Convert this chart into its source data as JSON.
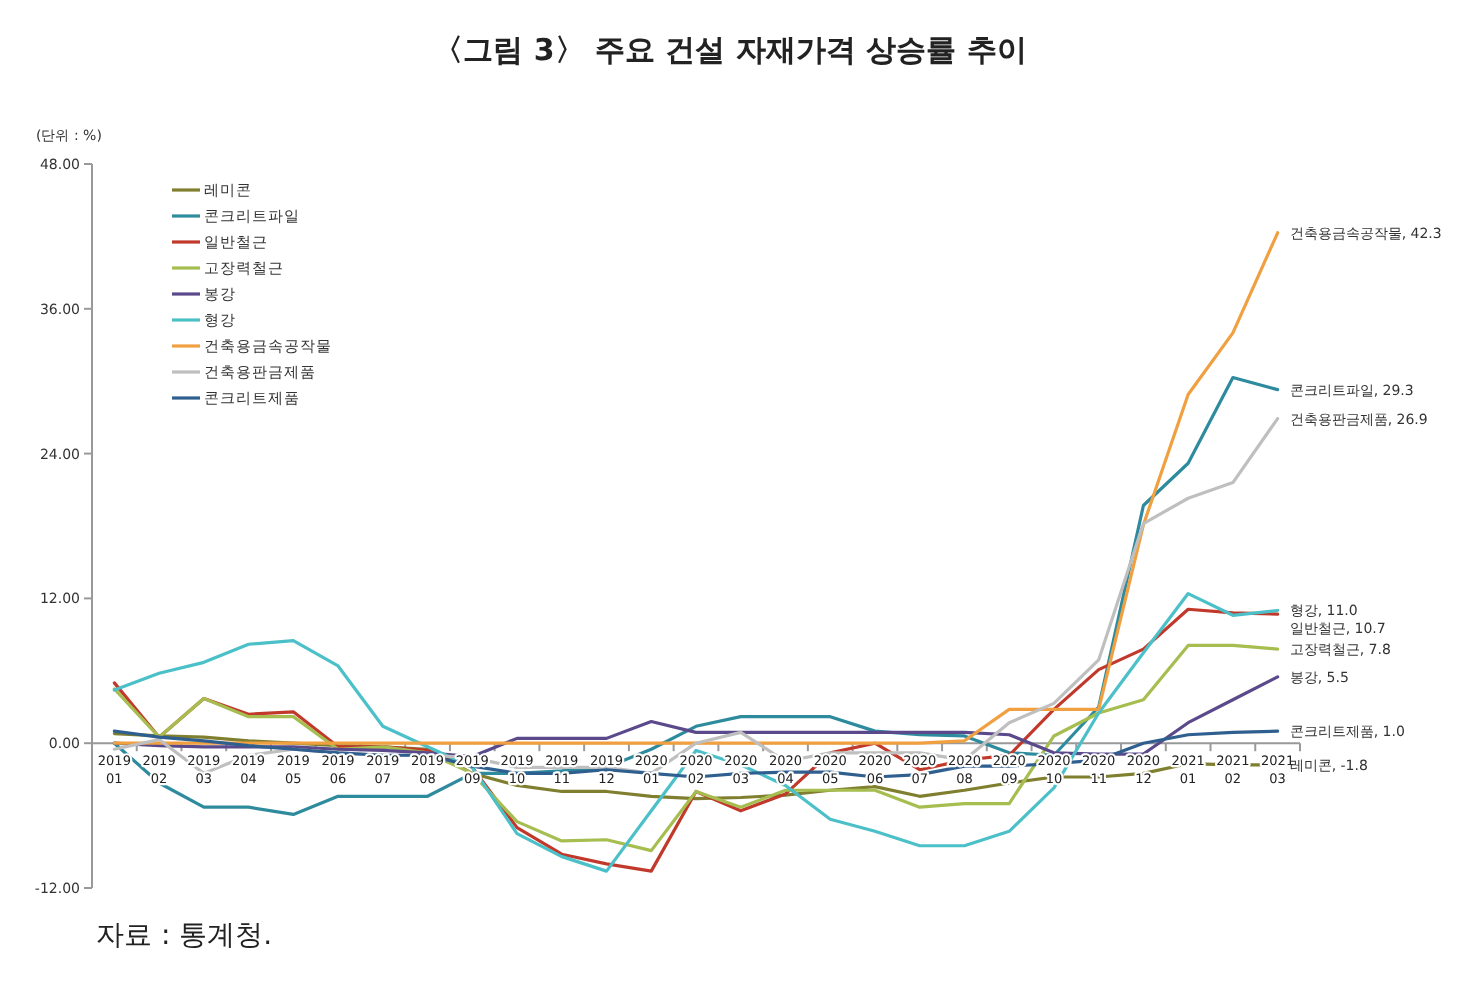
{
  "chart_data": {
    "type": "line",
    "title": "〈그림 3〉 주요 건설 자재가격 상승률 추이",
    "ylabel": "(단위 : %)",
    "categories": [
      "2019\n01",
      "2019\n02",
      "2019\n03",
      "2019\n04",
      "2019\n05",
      "2019\n06",
      "2019\n07",
      "2019\n08",
      "2019\n09",
      "2019\n10",
      "2019\n11",
      "2019\n12",
      "2020\n01",
      "2020\n02",
      "2020\n03",
      "2020\n04",
      "2020\n05",
      "2020\n06",
      "2020\n07",
      "2020\n08",
      "2020\n09",
      "2020\n10",
      "2020\n11",
      "2020\n12",
      "2021\n01",
      "2021\n02",
      "2021\n03"
    ],
    "ylim": [
      -12,
      48
    ],
    "yticks": [
      {
        "value": -12,
        "label": "-12.00"
      },
      {
        "value": 0,
        "label": "0.00"
      },
      {
        "value": 12,
        "label": "12.00"
      },
      {
        "value": 24,
        "label": "24.00"
      },
      {
        "value": 36,
        "label": "36.00"
      },
      {
        "value": 48,
        "label": "48.00"
      }
    ],
    "grid": false,
    "legend": "top left",
    "line_style": "solid",
    "marker": "none",
    "series": [
      {
        "name": "레미콘",
        "color": "#7f7f2f",
        "values": [
          0.8,
          0.6,
          0.5,
          0.2,
          0.0,
          -0.2,
          -0.3,
          -0.5,
          -2.5,
          -3.5,
          -4.0,
          -4.0,
          -4.4,
          -4.6,
          -4.5,
          -4.3,
          -3.9,
          -3.6,
          -4.4,
          -3.9,
          -3.3,
          -2.8,
          -2.8,
          -2.5,
          -1.7,
          -1.8,
          -1.8
        ]
      },
      {
        "name": "콘크리트파일",
        "color": "#2e8b9e",
        "values": [
          0.0,
          -3.3,
          -5.3,
          -5.3,
          -5.9,
          -4.4,
          -4.4,
          -4.4,
          -2.5,
          -2.5,
          -2.3,
          -2.0,
          -0.5,
          1.4,
          2.2,
          2.2,
          2.2,
          1.0,
          0.7,
          0.6,
          -0.8,
          -1.0,
          3.0,
          19.7,
          23.2,
          30.3,
          29.3
        ]
      },
      {
        "name": "일반철근",
        "color": "#c0392b",
        "values": [
          5.0,
          0.5,
          3.7,
          2.4,
          2.6,
          -0.3,
          -0.3,
          -0.6,
          -2.0,
          -7.0,
          -9.2,
          -10.0,
          -10.6,
          -4.0,
          -5.6,
          -4.2,
          -0.8,
          0.0,
          -2.2,
          -1.4,
          -1.0,
          2.8,
          6.1,
          7.8,
          11.1,
          10.8,
          10.7
        ]
      },
      {
        "name": "고장력철근",
        "color": "#a6bd4f",
        "values": [
          4.5,
          0.5,
          3.7,
          2.2,
          2.2,
          -0.5,
          -0.3,
          -0.8,
          -2.5,
          -6.5,
          -8.1,
          -8.0,
          -8.9,
          -4.0,
          -5.3,
          -3.9,
          -3.9,
          -3.9,
          -5.3,
          -5.0,
          -5.0,
          0.6,
          2.5,
          3.6,
          8.1,
          8.1,
          7.8
        ]
      },
      {
        "name": "봉강",
        "color": "#5b4a8b",
        "values": [
          0.0,
          -0.2,
          -0.3,
          -0.3,
          -0.3,
          -0.5,
          -0.6,
          -0.8,
          -1.1,
          0.4,
          0.4,
          0.4,
          1.8,
          0.9,
          0.9,
          0.9,
          0.9,
          0.9,
          0.9,
          0.9,
          0.7,
          -0.8,
          -0.9,
          -0.9,
          1.7,
          3.6,
          5.5
        ]
      },
      {
        "name": "형강",
        "color": "#4bc0c8",
        "values": [
          4.4,
          5.8,
          6.7,
          8.2,
          8.5,
          6.4,
          1.4,
          -0.3,
          -2.0,
          -7.5,
          -9.4,
          -10.6,
          -5.6,
          -0.6,
          -1.8,
          -3.5,
          -6.3,
          -7.3,
          -8.5,
          -8.5,
          -7.3,
          -3.7,
          2.5,
          7.5,
          12.4,
          10.6,
          11.0
        ]
      },
      {
        "name": "건축용금속공작물",
        "color": "#f0a040",
        "values": [
          0,
          0,
          0,
          0,
          0,
          0,
          0,
          0,
          0,
          0,
          0,
          0,
          0,
          0,
          0,
          0,
          0,
          0,
          0,
          0.2,
          2.8,
          2.8,
          2.8,
          18.1,
          28.9,
          34.0,
          42.3
        ]
      },
      {
        "name": "건축용판금제품",
        "color": "#bfbfbf",
        "values": [
          -0.5,
          0.3,
          -2.5,
          -1.0,
          -0.5,
          -0.8,
          -1.0,
          -1.0,
          -1.2,
          -2.0,
          -2.0,
          -2.0,
          -2.5,
          0.0,
          0.9,
          -1.5,
          -0.8,
          -0.8,
          -0.8,
          -1.4,
          1.7,
          3.3,
          6.9,
          18.2,
          20.3,
          21.6,
          26.9
        ]
      },
      {
        "name": "콘크리트제품",
        "color": "#2f5f8f",
        "values": [
          1.0,
          0.5,
          0.2,
          -0.2,
          -0.5,
          -0.8,
          -1.0,
          -1.0,
          -1.9,
          -2.5,
          -2.5,
          -2.2,
          -2.5,
          -2.8,
          -2.5,
          -2.4,
          -2.4,
          -2.8,
          -2.6,
          -1.9,
          -1.9,
          -1.7,
          -1.4,
          0.0,
          0.7,
          0.9,
          1.0
        ]
      }
    ],
    "annotations": [
      {
        "text": "건축용금속공작물, 42.3",
        "x": "2021\n03",
        "y": 42.3
      },
      {
        "text": "콘크리트파일, 29.3",
        "x": "2021\n03",
        "y": 29.3
      },
      {
        "text": "건축용판금제품, 26.9",
        "x": "2021\n03",
        "y": 26.9
      },
      {
        "text": "형강, 11.0",
        "x": "2021\n03",
        "y": 11.0
      },
      {
        "text": "일반철근, 10.7",
        "x": "2021\n03",
        "y": 10.7
      },
      {
        "text": "고장력철근, 7.8",
        "x": "2021\n03",
        "y": 7.8
      },
      {
        "text": "봉강, 5.5",
        "x": "2021\n03",
        "y": 5.5
      },
      {
        "text": "콘크리트제품, 1.0",
        "x": "2021\n03",
        "y": 1.0
      },
      {
        "text": "레미콘, -1.8",
        "x": "2021\n03",
        "y": -1.8
      },
      "자료 : 통계청."
    ]
  }
}
